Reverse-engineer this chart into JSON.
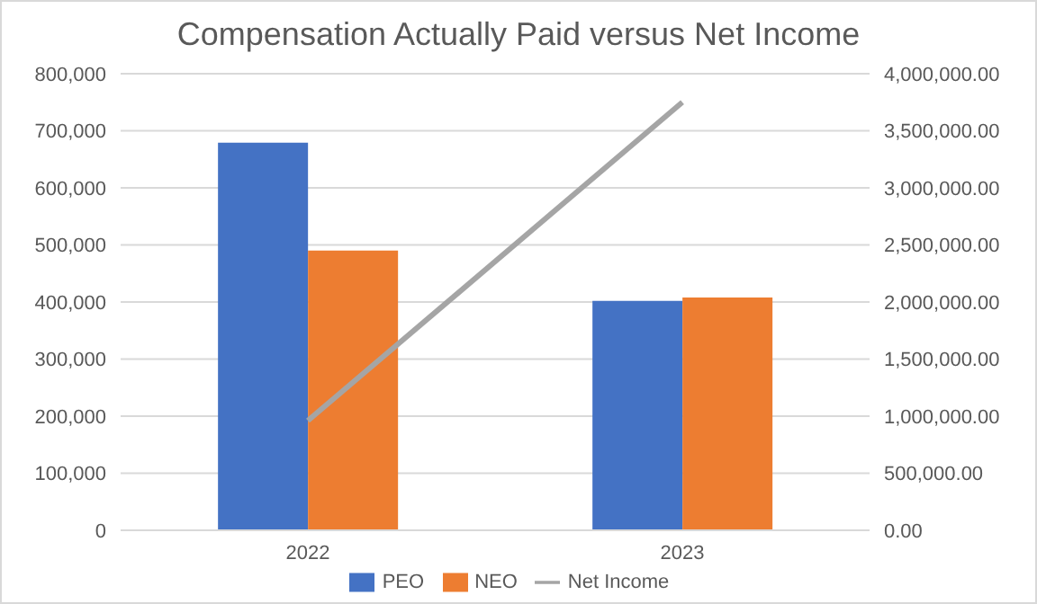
{
  "chart_data": {
    "type": "bar",
    "title": "Compensation Actually Paid versus Net Income",
    "categories": [
      "2022",
      "2023"
    ],
    "series": [
      {
        "name": "PEO",
        "color": "#4472c4",
        "values": [
          679000,
          402000
        ]
      },
      {
        "name": "NEO",
        "color": "#ed7d31",
        "values": [
          490000,
          408000
        ]
      },
      {
        "name": "Net Income",
        "type": "line",
        "axis": "y2",
        "color": "#a5a5a5",
        "values": [
          960000,
          3750000
        ]
      }
    ],
    "ylim": [
      0,
      800000
    ],
    "yticks": [
      {
        "value": 0,
        "label": "0"
      },
      {
        "value": 100000,
        "label": "100,000"
      },
      {
        "value": 200000,
        "label": "200,000"
      },
      {
        "value": 300000,
        "label": "300,000"
      },
      {
        "value": 400000,
        "label": "400,000"
      },
      {
        "value": 500000,
        "label": "500,000"
      },
      {
        "value": 600000,
        "label": "600,000"
      },
      {
        "value": 700000,
        "label": "700,000"
      },
      {
        "value": 800000,
        "label": "800,000"
      }
    ],
    "y2lim": [
      0,
      4000000
    ],
    "y2ticks": [
      {
        "value": 0,
        "label": "0.00"
      },
      {
        "value": 500000,
        "label": "500,000.00"
      },
      {
        "value": 1000000,
        "label": "1,000,000.00"
      },
      {
        "value": 1500000,
        "label": "1,500,000.00"
      },
      {
        "value": 2000000,
        "label": "2,000,000.00"
      },
      {
        "value": 2500000,
        "label": "2,500,000.00"
      },
      {
        "value": 3000000,
        "label": "3,000,000.00"
      },
      {
        "value": 3500000,
        "label": "3,500,000.00"
      },
      {
        "value": 4000000,
        "label": "4,000,000.00"
      }
    ],
    "grid": "y",
    "legend": "bottom",
    "marker": "none"
  }
}
